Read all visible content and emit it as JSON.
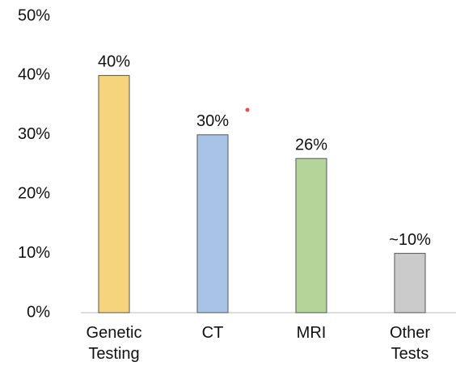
{
  "chart_data": {
    "type": "bar",
    "categories": [
      "Genetic Testing",
      "CT",
      "MRI",
      "Other Tests"
    ],
    "values": [
      40,
      30,
      26,
      10
    ],
    "value_labels": [
      "40%",
      "30%",
      "26%",
      "~10%"
    ],
    "colors": [
      "#f6d47c",
      "#a8c3e6",
      "#b4d49a",
      "#cbcbcb"
    ],
    "ylim": [
      0,
      50
    ],
    "yticks": [
      {
        "value": 0,
        "label": "0%"
      },
      {
        "value": 10,
        "label": "10%"
      },
      {
        "value": 20,
        "label": "20%"
      },
      {
        "value": 30,
        "label": "30%"
      },
      {
        "value": 40,
        "label": "40%"
      },
      {
        "value": 50,
        "label": "50%"
      }
    ],
    "grid": false
  }
}
